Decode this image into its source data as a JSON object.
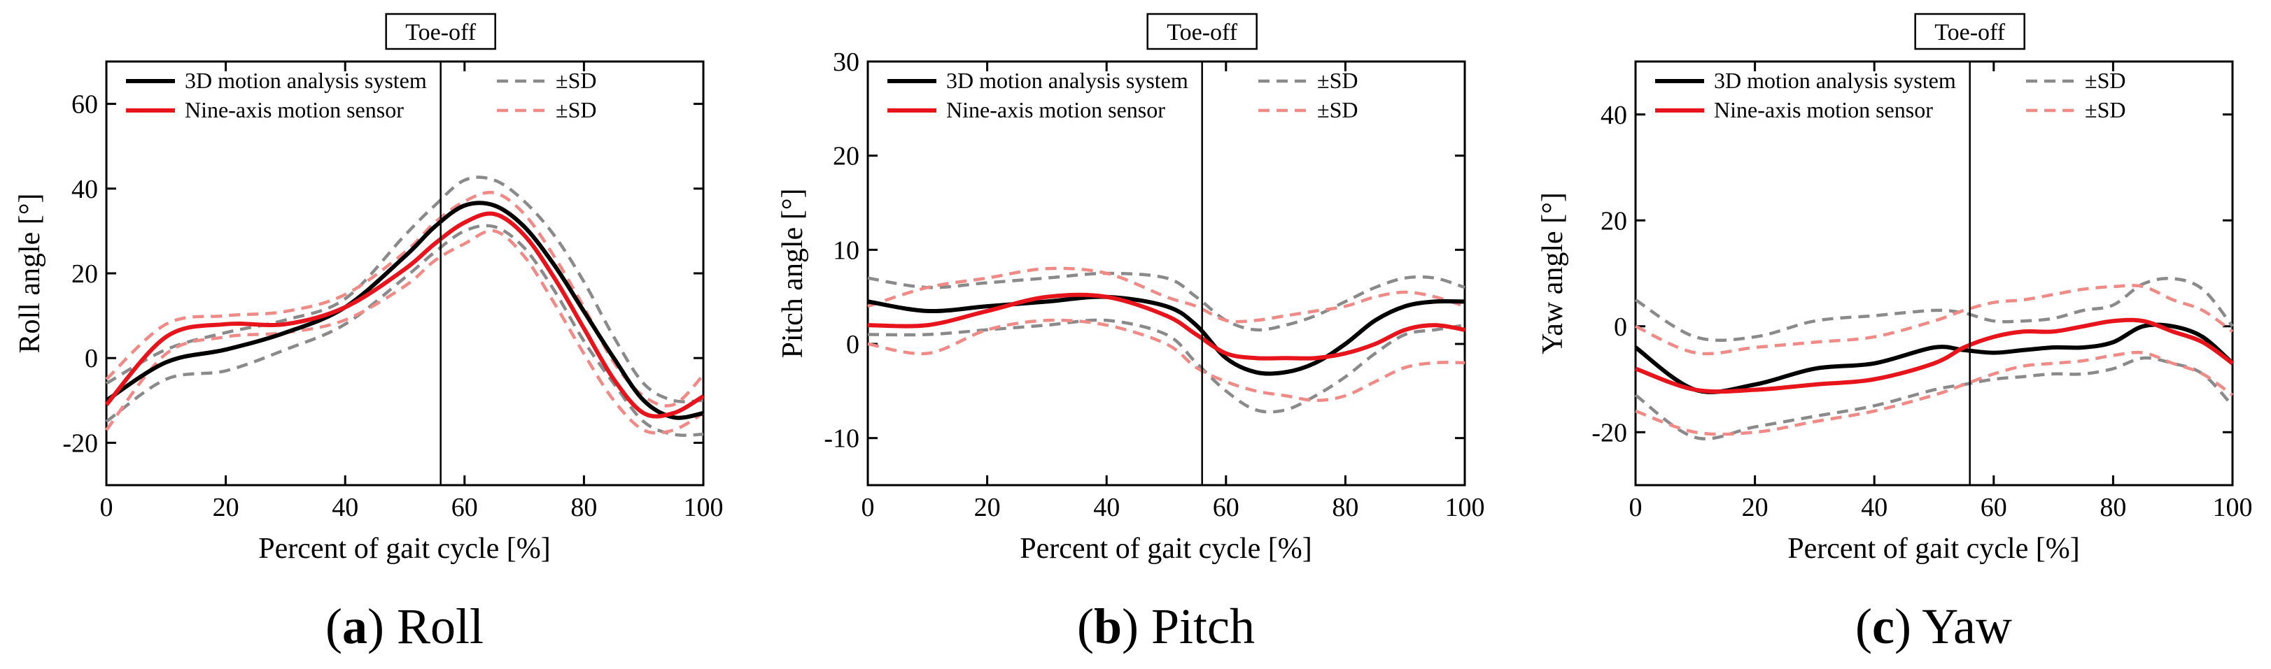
{
  "figure": {
    "legend_labels": {
      "mocap_mean": "3D motion analysis system",
      "sensor_mean": "Nine-axis motion sensor",
      "mocap_sd": "±SD",
      "sensor_sd": "±SD"
    },
    "toe_off_label": "Toe-off",
    "colors": {
      "mocap_mean": "#000000",
      "sensor_mean": "#e8141c",
      "mocap_sd": "#8a8a8a",
      "sensor_sd": "#f08a86"
    }
  },
  "chart_data": [
    {
      "type": "line",
      "caption_letter": "a",
      "caption_text": "Roll",
      "xlabel": "Percent of gait cycle [%]",
      "ylabel": "Roll angle [°]",
      "xlim": [
        0,
        100
      ],
      "ylim": [
        -30,
        70
      ],
      "xticks": [
        0,
        20,
        40,
        60,
        80,
        100
      ],
      "yticks": [
        -20,
        0,
        20,
        40,
        60
      ],
      "toe_off": 56,
      "x": [
        0,
        10,
        20,
        30,
        40,
        50,
        55,
        60,
        65,
        70,
        75,
        80,
        85,
        90,
        95,
        100
      ],
      "series": [
        {
          "name": "3D motion analysis system",
          "role": "mocap_mean",
          "values": [
            -10,
            -1,
            2,
            6,
            12,
            24,
            31,
            36,
            36,
            31,
            22,
            11,
            0,
            -10,
            -14,
            -13
          ]
        },
        {
          "name": "Nine-axis motion sensor",
          "role": "sensor_mean",
          "values": [
            -11,
            5,
            8,
            8,
            12,
            21,
            27,
            32,
            34,
            29,
            19,
            7,
            -5,
            -13,
            -13,
            -9
          ]
        },
        {
          "name": "±SD",
          "role": "mocap_sd",
          "values": [
            -6,
            2,
            6,
            9,
            14,
            29,
            36,
            42,
            42,
            37,
            29,
            18,
            5,
            -6,
            -10,
            -10
          ]
        },
        {
          "name": "±SD",
          "role": "mocap_sd",
          "values": [
            -15,
            -5,
            -3,
            2,
            8,
            19,
            25,
            30,
            31,
            26,
            16,
            4,
            -6,
            -15,
            -18,
            -18
          ]
        },
        {
          "name": "±SD",
          "role": "sensor_sd",
          "values": [
            -5,
            8,
            10,
            11,
            15,
            25,
            32,
            37,
            39,
            34,
            24,
            12,
            -1,
            -9,
            -11,
            -4
          ]
        },
        {
          "name": "±SD",
          "role": "sensor_sd",
          "values": [
            -17,
            1,
            5,
            6,
            9,
            17,
            23,
            27,
            30,
            24,
            13,
            1,
            -10,
            -17,
            -17,
            -13
          ]
        }
      ]
    },
    {
      "type": "line",
      "caption_letter": "b",
      "caption_text": "Pitch",
      "xlabel": "Percent of gait cycle [%]",
      "ylabel": "Pitch angle [°]",
      "xlim": [
        0,
        100
      ],
      "ylim": [
        -15,
        30
      ],
      "xticks": [
        0,
        20,
        40,
        60,
        80,
        100
      ],
      "yticks": [
        -10,
        0,
        10,
        20,
        30
      ],
      "toe_off": 56,
      "x": [
        0,
        10,
        20,
        30,
        40,
        50,
        55,
        60,
        65,
        70,
        75,
        80,
        85,
        90,
        95,
        100
      ],
      "series": [
        {
          "name": "3D motion analysis system",
          "role": "mocap_mean",
          "values": [
            4.5,
            3.5,
            4,
            4.5,
            5,
            4,
            2,
            -1.5,
            -3,
            -3,
            -2,
            0,
            2.5,
            4,
            4.5,
            4.5
          ]
        },
        {
          "name": "Nine-axis motion sensor",
          "role": "sensor_mean",
          "values": [
            2,
            2,
            3.5,
            5,
            5,
            3,
            1,
            -1,
            -1.5,
            -1.5,
            -1.5,
            -1,
            0,
            1.5,
            2,
            1.5
          ]
        },
        {
          "name": "±SD",
          "role": "mocap_sd",
          "values": [
            7,
            6,
            6.5,
            7,
            7.5,
            7,
            5,
            2.5,
            1.5,
            2,
            3,
            4.5,
            6,
            7,
            7,
            6
          ]
        },
        {
          "name": "±SD",
          "role": "mocap_sd",
          "values": [
            1,
            1,
            1.5,
            2,
            2.5,
            1,
            -2,
            -5,
            -7,
            -7,
            -5.5,
            -3.5,
            -1,
            1,
            1.5,
            2
          ]
        },
        {
          "name": "±SD",
          "role": "sensor_sd",
          "values": [
            4,
            6,
            7,
            8,
            7.5,
            5,
            4,
            2.5,
            2.5,
            3,
            3.5,
            4,
            5,
            5.5,
            5,
            4
          ]
        },
        {
          "name": "±SD",
          "role": "sensor_sd",
          "values": [
            0,
            -1,
            1.5,
            2.5,
            2,
            0,
            -2.5,
            -4,
            -5,
            -5.5,
            -6,
            -5.5,
            -4,
            -2.5,
            -2,
            -2
          ]
        }
      ]
    },
    {
      "type": "line",
      "caption_letter": "c",
      "caption_text": "Yaw",
      "xlabel": "Percent of gait cycle [%]",
      "ylabel": "Yaw angle [°]",
      "xlim": [
        0,
        100
      ],
      "ylim": [
        -30,
        50
      ],
      "xticks": [
        0,
        20,
        40,
        60,
        80,
        100
      ],
      "yticks": [
        -20,
        0,
        20,
        40
      ],
      "toe_off": 56,
      "x": [
        0,
        10,
        20,
        30,
        40,
        50,
        55,
        60,
        65,
        70,
        75,
        80,
        85,
        90,
        95,
        100
      ],
      "series": [
        {
          "name": "3D motion analysis system",
          "role": "mocap_mean",
          "values": [
            -4,
            -12,
            -11,
            -8,
            -7,
            -4,
            -4.5,
            -5,
            -4.5,
            -4,
            -4,
            -3,
            0,
            0,
            -2,
            -7
          ]
        },
        {
          "name": "Nine-axis motion sensor",
          "role": "sensor_mean",
          "values": [
            -8,
            -12,
            -12,
            -11,
            -10,
            -7,
            -4,
            -2,
            -1,
            -1,
            0,
            1,
            1,
            -1,
            -3,
            -7
          ]
        },
        {
          "name": "±SD",
          "role": "mocap_sd",
          "values": [
            5,
            -2,
            -2,
            1,
            2,
            3,
            2.5,
            1,
            1,
            1.5,
            3,
            4,
            8,
            9,
            7,
            0
          ]
        },
        {
          "name": "±SD",
          "role": "mocap_sd",
          "values": [
            -13,
            -21,
            -19,
            -17,
            -15,
            -12,
            -11,
            -10,
            -9.5,
            -9,
            -9,
            -8,
            -6,
            -7,
            -9,
            -15
          ]
        },
        {
          "name": "±SD",
          "role": "sensor_sd",
          "values": [
            0,
            -5,
            -4,
            -3,
            -2,
            1,
            3,
            4.5,
            5,
            6,
            7,
            7.5,
            7.5,
            5,
            3,
            -1
          ]
        },
        {
          "name": "±SD",
          "role": "sensor_sd",
          "values": [
            -16,
            -20,
            -20,
            -18,
            -16,
            -13,
            -11,
            -9,
            -7.5,
            -7,
            -6.5,
            -5.5,
            -5,
            -7,
            -9,
            -13
          ]
        }
      ]
    }
  ]
}
